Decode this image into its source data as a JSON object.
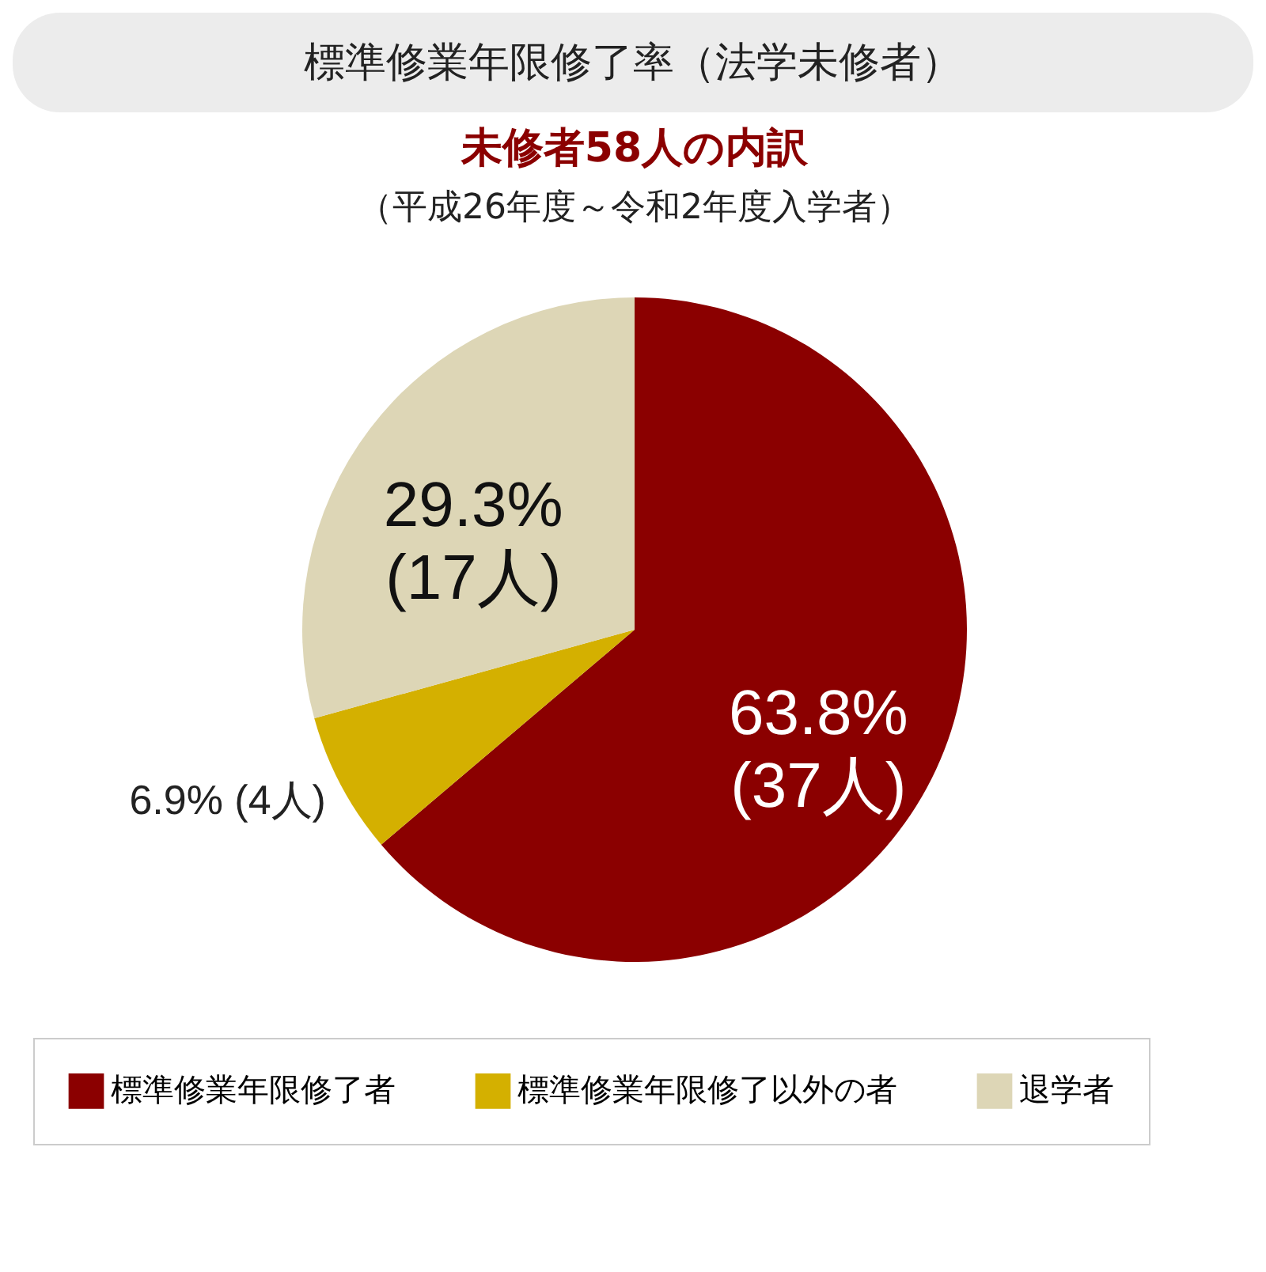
{
  "chart_data": {
    "type": "pie",
    "title": "標準修業年限修了率（法学未修者）",
    "subtitle": "未修者58人の内訳",
    "annotations": [
      "（平成26年度～令和2年度入学者）"
    ],
    "categories": [
      "標準修業年限修了者",
      "標準修業年限修了以外の者",
      "退学者"
    ],
    "values": [
      63.8,
      6.9,
      29.3
    ],
    "colors": [
      "#8b0000",
      "#d4b000",
      "#ddd6b6"
    ],
    "value_labels": [
      "63.8%\n(37人)",
      "6.9% (4人)",
      "29.3%\n(17人)"
    ],
    "legend": "bottom"
  }
}
